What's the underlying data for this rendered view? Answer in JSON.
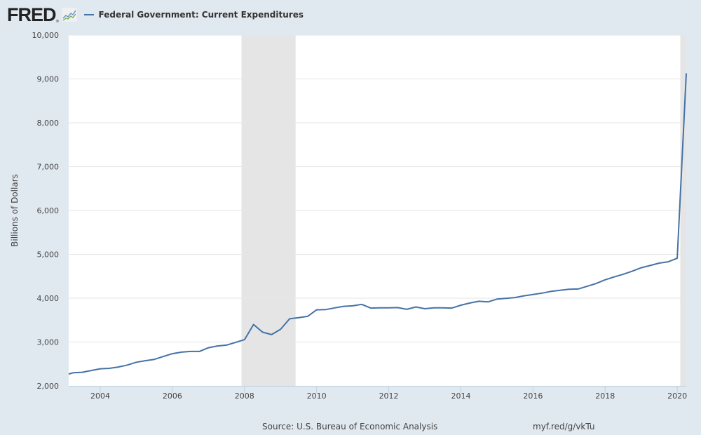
{
  "header": {
    "logo_text": "FRED",
    "logo_reg": "®",
    "logo_icon": "line-chart-icon",
    "series_color": "#4572a7"
  },
  "footer": {
    "source": "Source: U.S. Bureau of Economic Analysis",
    "link": "myf.red/g/vkTu"
  },
  "chart_data": {
    "type": "line",
    "title": "",
    "legend": [
      "Federal Government: Current Expenditures"
    ],
    "legend_position": "top-left",
    "xlabel": "",
    "ylabel": "Billions of Dollars",
    "xlim": [
      2003.125,
      2020.25
    ],
    "ylim": [
      2000,
      10000
    ],
    "grid": true,
    "x_ticks": [
      2004,
      2006,
      2008,
      2010,
      2012,
      2014,
      2016,
      2018,
      2020
    ],
    "x_tick_labels": [
      "2004",
      "2006",
      "2008",
      "2010",
      "2012",
      "2014",
      "2016",
      "2018",
      "2020"
    ],
    "y_ticks": [
      2000,
      3000,
      4000,
      5000,
      6000,
      7000,
      8000,
      9000,
      10000
    ],
    "y_tick_labels": [
      "2,000",
      "3,000",
      "4,000",
      "5,000",
      "6,000",
      "7,000",
      "8,000",
      "9,000",
      "10,000"
    ],
    "recessions": [
      [
        2007.917,
        2009.417
      ],
      [
        2020.083,
        2020.25
      ]
    ],
    "series": [
      {
        "name": "Federal Government: Current Expenditures",
        "color": "#4572a7",
        "x": [
          2003.125,
          2003.25,
          2003.5,
          2003.75,
          2004.0,
          2004.25,
          2004.5,
          2004.75,
          2005.0,
          2005.25,
          2005.5,
          2005.75,
          2006.0,
          2006.25,
          2006.5,
          2006.75,
          2007.0,
          2007.25,
          2007.5,
          2007.75,
          2008.0,
          2008.25,
          2008.5,
          2008.75,
          2009.0,
          2009.25,
          2009.5,
          2009.75,
          2010.0,
          2010.25,
          2010.5,
          2010.75,
          2011.0,
          2011.25,
          2011.5,
          2011.75,
          2012.0,
          2012.25,
          2012.5,
          2012.75,
          2013.0,
          2013.25,
          2013.5,
          2013.75,
          2014.0,
          2014.25,
          2014.5,
          2014.75,
          2015.0,
          2015.25,
          2015.5,
          2015.75,
          2016.0,
          2016.25,
          2016.5,
          2016.75,
          2017.0,
          2017.25,
          2017.5,
          2017.75,
          2018.0,
          2018.25,
          2018.5,
          2018.75,
          2019.0,
          2019.25,
          2019.5,
          2019.75,
          2020.0,
          2020.25
        ],
        "values": [
          2270,
          2300,
          2310,
          2350,
          2390,
          2400,
          2430,
          2475,
          2540,
          2575,
          2605,
          2670,
          2735,
          2770,
          2785,
          2785,
          2870,
          2910,
          2930,
          2990,
          3055,
          3400,
          3225,
          3170,
          3290,
          3530,
          3555,
          3585,
          3735,
          3740,
          3780,
          3815,
          3825,
          3860,
          3775,
          3780,
          3780,
          3785,
          3745,
          3800,
          3760,
          3780,
          3780,
          3775,
          3840,
          3890,
          3930,
          3915,
          3980,
          3995,
          4015,
          4055,
          4085,
          4115,
          4155,
          4180,
          4205,
          4210,
          4270,
          4335,
          4420,
          4485,
          4545,
          4615,
          4695,
          4745,
          4800,
          4830,
          4910,
          9130
        ]
      }
    ]
  }
}
